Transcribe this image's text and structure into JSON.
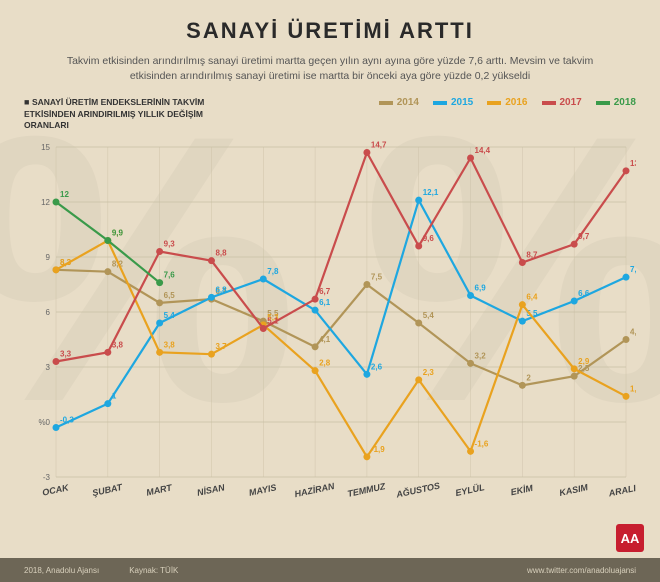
{
  "title": "SANAYİ ÜRETİMİ ARTTI",
  "subtitle": "Takvim etkisinden arındırılmış sanayi üretimi martta geçen yılın aynı ayına göre yüzde 7,6 arttı. Mevsim ve takvim etkisinden arındırılmış sanayi üretimi ise martta bir önceki aya göre yüzde 0,2 yükseldi",
  "axis_label": "SANAYİ ÜRETİM ENDEKSLERİNİN TAKVİM ETKİSİNDEN ARINDIRILMIŞ YILLIK DEĞİŞİM ORANLARI",
  "chart": {
    "type": "line",
    "categories": [
      "OCAK",
      "ŞUBAT",
      "MART",
      "NİSAN",
      "MAYIS",
      "HAZİRAN",
      "TEMMUZ",
      "AĞUSTOS",
      "EYLÜL",
      "EKİM",
      "KASIM",
      "ARALIK"
    ],
    "ylim": [
      -3,
      15
    ],
    "yticks": [
      -3,
      0,
      3,
      6,
      9,
      12,
      15
    ],
    "ytick_labels": [
      "-3",
      "%0",
      "3",
      "6",
      "9",
      "12",
      "15"
    ],
    "grid_color": "#c9bfa5",
    "background": "#e8ddc7",
    "tick_fontsize": 8,
    "label_fontsize": 9,
    "line_width": 2.2,
    "marker_radius": 3.5,
    "series": [
      {
        "name": "2014",
        "color": "#b19558",
        "values": [
          8.3,
          8.2,
          6.5,
          6.7,
          5.5,
          4.1,
          7.5,
          5.4,
          3.2,
          2.0,
          2.5,
          4.5
        ]
      },
      {
        "name": "2015",
        "color": "#1ea7e0",
        "values": [
          -0.3,
          1.0,
          5.4,
          6.8,
          7.8,
          6.1,
          2.6,
          12.1,
          6.9,
          5.5,
          6.6,
          7.9
        ]
      },
      {
        "name": "2016",
        "color": "#e9a21f",
        "values": [
          8.3,
          9.9,
          3.8,
          3.7,
          5.3,
          2.8,
          -1.9,
          2.3,
          -1.6,
          6.4,
          2.9,
          1.4
        ]
      },
      {
        "name": "2017",
        "color": "#c94c4c",
        "values": [
          3.3,
          3.8,
          9.3,
          8.8,
          5.1,
          6.7,
          14.7,
          9.6,
          14.4,
          8.7,
          9.7,
          13.7
        ]
      },
      {
        "name": "2018",
        "color": "#3a9a4a",
        "values": [
          12.0,
          9.9,
          7.6
        ]
      }
    ]
  },
  "footer": {
    "copyright": "2018, Anadolu Ajansı",
    "source_label": "Kaynak:",
    "source": "TÜİK",
    "link": "www.twitter.com/anadoluajansi"
  },
  "logo_text": "AA"
}
